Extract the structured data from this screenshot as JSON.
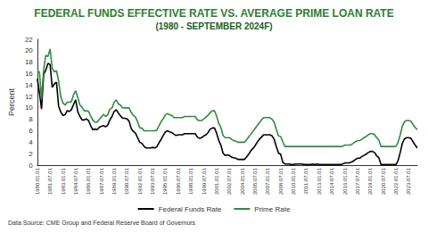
{
  "chart_data": {
    "type": "line",
    "title": "FEDERAL FUNDS EFFECTIVE RATE VS. AVERAGE PRIME LOAN RATE",
    "subtitle": "(1980 - SEPTEMBER 2024F)",
    "y_label": "Percent",
    "source": "Data Source: CME Group and Federal Reserve Board of Governors",
    "categories": [
      "1980.01.01",
      null,
      null,
      null,
      null,
      null,
      "1981.07.01",
      null,
      null,
      null,
      null,
      null,
      "1983.01.01",
      null,
      null,
      null,
      null,
      null,
      "1984.07.01",
      null,
      null,
      null,
      null,
      null,
      "1986.01.01",
      null,
      null,
      null,
      null,
      null,
      "1987.07.01",
      null,
      null,
      null,
      null,
      null,
      "1989.01.01",
      null,
      null,
      null,
      null,
      null,
      "1990.07.01",
      null,
      null,
      null,
      null,
      null,
      "1992.01.01",
      null,
      null,
      null,
      null,
      null,
      "1993.07.01",
      null,
      null,
      null,
      null,
      null,
      "1995.01.01",
      null,
      null,
      null,
      null,
      null,
      "1996.07.01",
      null,
      null,
      null,
      null,
      null,
      "1998.01.01",
      null,
      null,
      null,
      null,
      null,
      "1999.07.01",
      null,
      null,
      null,
      null,
      null,
      "2001.01.01",
      null,
      null,
      null,
      null,
      null,
      "2002.07.01",
      null,
      null,
      null,
      null,
      null,
      "2004.01.01",
      null,
      null,
      null,
      null,
      null,
      "2005.07.01",
      null,
      null,
      null,
      null,
      null,
      "2007.01.01",
      null,
      null,
      null,
      null,
      null,
      "2008.07.01",
      null,
      null,
      null,
      null,
      null,
      "2010.01.01",
      null,
      null,
      null,
      null,
      null,
      "2011.07.01",
      null,
      null,
      null,
      null,
      null,
      "2013.01.01",
      null,
      null,
      null,
      null,
      null,
      "2014.07.01",
      null,
      null,
      null,
      null,
      null,
      "2016.01.01",
      null,
      null,
      null,
      null,
      null,
      "2017.07.01",
      null,
      null,
      null,
      null,
      null,
      "2019.01.01",
      null,
      null,
      null,
      null,
      null,
      "2020.07.01",
      null,
      null,
      null,
      null,
      null,
      "2022.01.01",
      null,
      null,
      null,
      null,
      null,
      "2023.07.01",
      null,
      null,
      null,
      null
    ],
    "series": [
      {
        "name": "Federal Funds Rate",
        "color": "#000000",
        "values": [
          15.1,
          12.7,
          9.8,
          15.9,
          16.6,
          17.8,
          17.6,
          13.6,
          14.2,
          14.5,
          10.3,
          9.3,
          8.7,
          8.8,
          9.5,
          9.4,
          9.7,
          10.6,
          11.4,
          9.3,
          8.5,
          7.9,
          7.9,
          8.1,
          7.8,
          6.9,
          6.2,
          6.3,
          6.2,
          6.6,
          6.8,
          6.9,
          6.7,
          7.0,
          7.9,
          8.5,
          9.4,
          9.7,
          9.1,
          8.6,
          8.2,
          8.2,
          8.1,
          7.7,
          6.4,
          5.9,
          5.6,
          4.8,
          4.0,
          3.8,
          3.3,
          3.0,
          3.0,
          3.0,
          3.1,
          3.0,
          3.2,
          3.9,
          4.5,
          5.2,
          5.8,
          6.0,
          5.8,
          5.7,
          5.4,
          5.2,
          5.3,
          5.3,
          5.3,
          5.5,
          5.5,
          5.5,
          5.5,
          5.5,
          5.5,
          4.9,
          4.7,
          4.8,
          5.1,
          5.3,
          5.7,
          6.3,
          6.5,
          6.5,
          5.6,
          4.3,
          3.5,
          2.1,
          1.7,
          1.8,
          1.7,
          1.4,
          1.3,
          1.2,
          1.0,
          1.0,
          1.0,
          1.0,
          1.4,
          1.9,
          2.5,
          2.9,
          3.4,
          4.0,
          4.5,
          4.9,
          5.3,
          5.3,
          5.3,
          5.3,
          5.1,
          4.5,
          3.2,
          2.1,
          1.9,
          0.5,
          0.2,
          0.2,
          0.2,
          0.1,
          0.1,
          0.2,
          0.2,
          0.2,
          0.2,
          0.1,
          0.1,
          0.1,
          0.1,
          0.2,
          0.1,
          0.2,
          0.1,
          0.1,
          0.1,
          0.1,
          0.1,
          0.1,
          0.1,
          0.1,
          0.1,
          0.1,
          0.1,
          0.2,
          0.4,
          0.4,
          0.4,
          0.5,
          0.7,
          1.0,
          1.2,
          1.2,
          1.5,
          1.7,
          1.9,
          2.2,
          2.4,
          2.4,
          2.2,
          1.6,
          1.3,
          0.1,
          0.1,
          0.1,
          0.1,
          0.1,
          0.1,
          0.1,
          0.1,
          0.8,
          2.2,
          3.8,
          4.6,
          4.8,
          4.8,
          4.7,
          4.1,
          3.5,
          3.0
        ]
      },
      {
        "name": "Prime Rate",
        "color": "#2e8b3e",
        "values": [
          16.4,
          16.3,
          11.6,
          16.7,
          19.2,
          19.0,
          20.3,
          17.0,
          16.3,
          16.5,
          14.7,
          12.0,
          10.9,
          10.5,
          11.0,
          11.0,
          11.1,
          12.3,
          13.0,
          11.8,
          10.5,
          10.1,
          9.5,
          9.5,
          9.4,
          8.6,
          7.9,
          7.5,
          7.5,
          8.0,
          8.4,
          8.9,
          8.5,
          8.8,
          9.8,
          10.0,
          11.0,
          11.4,
          10.7,
          10.5,
          10.0,
          10.0,
          10.0,
          10.0,
          9.2,
          8.7,
          8.4,
          7.6,
          6.5,
          6.5,
          6.0,
          6.0,
          6.0,
          6.0,
          6.0,
          6.0,
          6.1,
          6.9,
          7.6,
          8.1,
          8.8,
          9.0,
          8.8,
          8.7,
          8.3,
          8.3,
          8.3,
          8.3,
          8.3,
          8.5,
          8.5,
          8.5,
          8.5,
          8.5,
          8.5,
          7.9,
          7.8,
          7.8,
          8.1,
          8.4,
          8.7,
          9.2,
          9.5,
          9.5,
          8.6,
          7.3,
          6.6,
          5.2,
          4.8,
          4.8,
          4.8,
          4.5,
          4.3,
          4.2,
          4.0,
          4.0,
          4.0,
          4.0,
          4.4,
          4.9,
          5.4,
          5.9,
          6.4,
          6.9,
          7.4,
          7.9,
          8.3,
          8.3,
          8.3,
          8.3,
          8.0,
          7.5,
          6.2,
          5.1,
          5.0,
          4.1,
          3.25,
          3.25,
          3.25,
          3.25,
          3.25,
          3.25,
          3.25,
          3.25,
          3.25,
          3.25,
          3.25,
          3.25,
          3.25,
          3.25,
          3.25,
          3.25,
          3.25,
          3.25,
          3.25,
          3.25,
          3.25,
          3.25,
          3.25,
          3.25,
          3.25,
          3.25,
          3.25,
          3.3,
          3.5,
          3.5,
          3.5,
          3.6,
          3.8,
          4.1,
          4.3,
          4.3,
          4.5,
          4.8,
          5.0,
          5.3,
          5.5,
          5.5,
          5.3,
          4.8,
          4.4,
          3.25,
          3.25,
          3.25,
          3.25,
          3.25,
          3.25,
          3.25,
          3.3,
          4.0,
          5.3,
          6.8,
          7.6,
          7.8,
          7.8,
          7.7,
          7.1,
          6.6,
          6.2
        ]
      }
    ],
    "ylim": [
      0,
      22
    ],
    "yticks": [
      0,
      2,
      4,
      6,
      8,
      10,
      12,
      14,
      16,
      18,
      20,
      22
    ],
    "grid": false,
    "legend": "bottom"
  }
}
